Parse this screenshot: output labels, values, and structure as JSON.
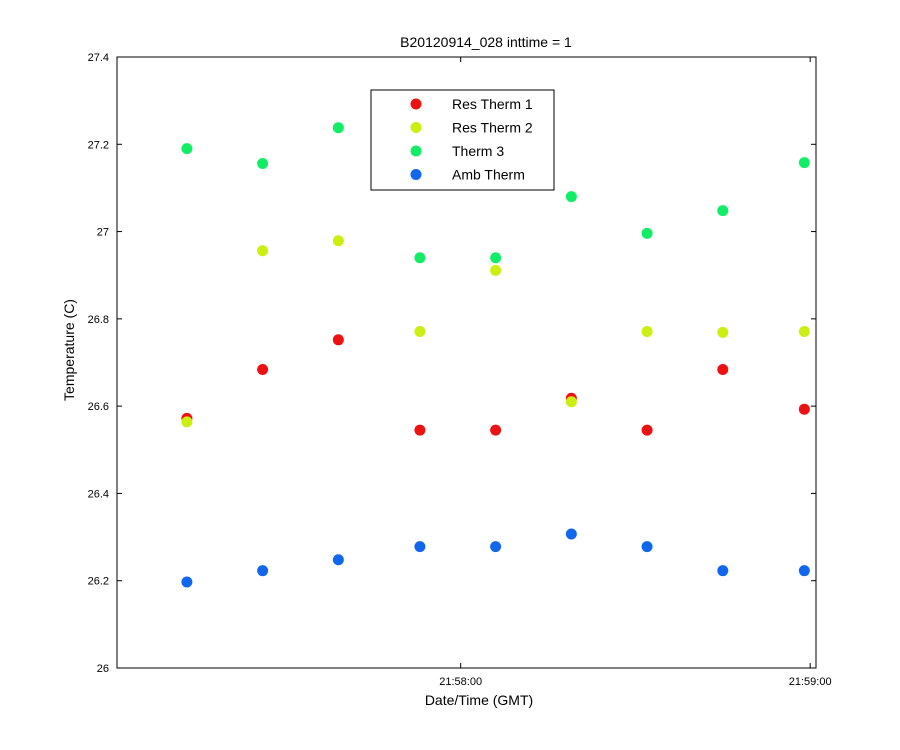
{
  "chart_data": {
    "type": "scatter",
    "title": "B20120914_028 inttime = 1",
    "xlabel": "Date/Time (GMT)",
    "ylabel": "Temperature (C)",
    "x_tick_labels": [
      "21:58:00",
      "21:59:00"
    ],
    "x_tick_values_seconds": [
      0,
      60
    ],
    "xlim_seconds": [
      -59,
      61
    ],
    "ylim": [
      26,
      27.4
    ],
    "y_ticks": [
      26,
      26.2,
      26.4,
      26.6,
      26.8,
      27,
      27.2,
      27.4
    ],
    "y_tick_labels": [
      "26",
      "26.2",
      "26.4",
      "26.6",
      "26.8",
      "27",
      "27.2",
      "27.4"
    ],
    "x_seconds": [
      -47,
      -34,
      -21,
      -7,
      6,
      19,
      32,
      45,
      59
    ],
    "grid": false,
    "legend_position": "top-center",
    "series": [
      {
        "name": "Res Therm 1",
        "color": "#ee1111",
        "values": [
          26.572,
          26.684,
          26.752,
          26.545,
          26.545,
          26.618,
          26.545,
          26.684,
          26.593
        ]
      },
      {
        "name": "Res Therm 2",
        "color": "#ccee11",
        "values": [
          26.564,
          26.956,
          26.979,
          26.771,
          26.911,
          26.61,
          26.771,
          26.769,
          26.771
        ]
      },
      {
        "name": "Therm 3",
        "color": "#11ee66",
        "values": [
          27.19,
          27.156,
          27.238,
          26.94,
          26.94,
          27.08,
          26.996,
          27.048,
          27.158
        ]
      },
      {
        "name": "Amb Therm",
        "color": "#1166ee",
        "values": [
          26.197,
          26.223,
          26.248,
          26.278,
          26.278,
          26.307,
          26.278,
          26.223,
          26.223
        ]
      }
    ]
  }
}
